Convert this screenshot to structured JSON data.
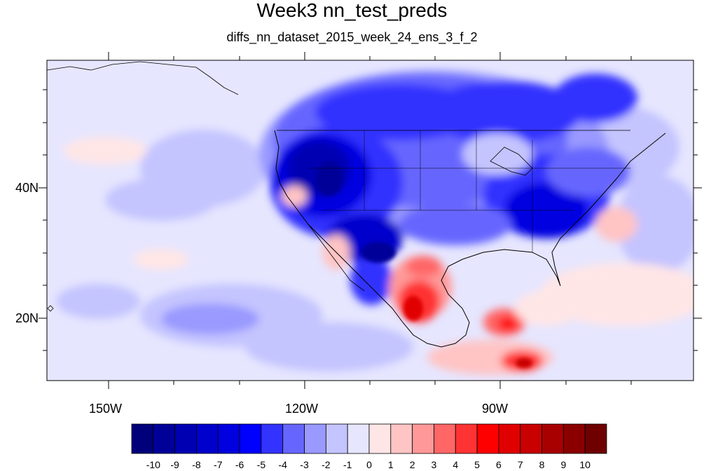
{
  "title": "Week3 nn_test_preds",
  "subtitle": "diffs_nn_dataset_2015_week_24_ens_3_f_2",
  "map": {
    "lon_range": [
      -160,
      -62
    ],
    "lat_range": [
      10,
      59
    ],
    "lon_labels": [
      "150W",
      "120W",
      "90W"
    ],
    "lat_labels": [
      "40N",
      "20N"
    ]
  },
  "colorbar": {
    "labels": [
      "-10",
      "-9",
      "-8",
      "-7",
      "-6",
      "-5",
      "-4",
      "-3",
      "-2",
      "-1",
      "0",
      "1",
      "2",
      "3",
      "4",
      "5",
      "6",
      "7",
      "8",
      "9",
      "10"
    ],
    "colors": [
      "#00007a",
      "#000099",
      "#0000b3",
      "#0000cc",
      "#0000e0",
      "#0000ff",
      "#3333ff",
      "#6666ff",
      "#9999ff",
      "#c4c4ff",
      "#e6e6ff",
      "#ffe6e6",
      "#ffc4c4",
      "#ff9999",
      "#ff6666",
      "#ff3333",
      "#ff0000",
      "#e00000",
      "#c80000",
      "#a80000",
      "#8a0000",
      "#6e0000"
    ]
  }
}
